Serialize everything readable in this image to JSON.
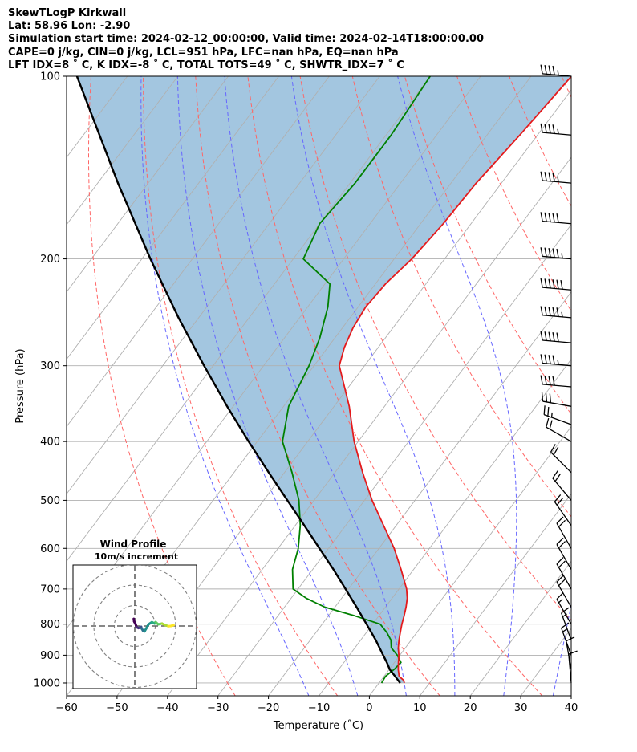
{
  "header": {
    "line1": "SkewTLogP Kirkwall",
    "line2": "Lat: 58.96   Lon: -2.90",
    "line3": "Simulation start time: 2024-02-12_00:00:00, Valid time: 2024-02-14T18:00:00.00",
    "line4": "CAPE=0 j/kg, CIN=0 j/kg, LCL=951 hPa, LFC=nan hPa, EQ=nan hPa",
    "line5": "LFT IDX=8 ˚ C, K IDX=-8 ˚ C, TOTAL TOTS=49 ˚ C, SHWTR_IDX=7 ˚ C"
  },
  "chart_data": {
    "type": "line",
    "subtype": "skew-t log-p",
    "xlabel": "Temperature (˚C)",
    "ylabel": "Pressure (hPa)",
    "xlim": [
      -60,
      40
    ],
    "ylim": [
      1050,
      100
    ],
    "x_ticks": [
      "−60",
      "−50",
      "−40",
      "−30",
      "−20",
      "−10",
      "0",
      "10",
      "20",
      "30",
      "40"
    ],
    "x_tick_values": [
      -60,
      -50,
      -40,
      -30,
      -20,
      -10,
      0,
      10,
      20,
      30,
      40
    ],
    "y_ticks": [
      "100",
      "200",
      "300",
      "400",
      "500",
      "600",
      "700",
      "800",
      "900",
      "1000"
    ],
    "y_tick_values": [
      100,
      200,
      300,
      400,
      500,
      600,
      700,
      800,
      900,
      1000
    ],
    "y_scale": "log",
    "grid": true,
    "colors": {
      "temperature": "#e41a1c",
      "dewpoint": "#008000",
      "parcel": "#000000",
      "shading": "#a3c6e0",
      "dry_adiabats": "#ff6666",
      "moist_adiabats": "#6666ff",
      "isotherms": "#b0b0b0"
    },
    "series": [
      {
        "role": "temperature",
        "p": [
          1000,
          990,
          975,
          950,
          925,
          900,
          875,
          850,
          825,
          800,
          775,
          750,
          725,
          700,
          650,
          600,
          550,
          500,
          450,
          400,
          350,
          300,
          280,
          260,
          240,
          220,
          200,
          175,
          150,
          125,
          100
        ],
        "t": [
          5,
          4.5,
          3,
          1.8,
          0.8,
          -0.2,
          -1.4,
          -2.4,
          -3.3,
          -4.2,
          -5,
          -5.9,
          -7,
          -8.5,
          -12.5,
          -17,
          -22.5,
          -28.5,
          -34.5,
          -40.8,
          -47,
          -55,
          -56.7,
          -57.9,
          -58.5,
          -58,
          -56.5,
          -55.5,
          -55,
          -53.5,
          -52
        ]
      },
      {
        "role": "dewpoint",
        "p": [
          1000,
          975,
          950,
          925,
          900,
          875,
          850,
          825,
          800,
          775,
          750,
          725,
          700,
          650,
          600,
          550,
          500,
          450,
          400,
          350,
          300,
          270,
          240,
          220,
          200,
          175,
          150,
          125,
          100
        ],
        "t": [
          0.5,
          0.3,
          1,
          1.3,
          -0.5,
          -2.8,
          -4,
          -6,
          -8.5,
          -14.8,
          -22,
          -27,
          -31,
          -34,
          -36,
          -39,
          -43,
          -48.5,
          -55,
          -59,
          -61,
          -63,
          -66,
          -69,
          -78,
          -80,
          -79,
          -79,
          -80
        ]
      },
      {
        "role": "parcel",
        "p": [
          1000,
          975,
          951,
          925,
          900,
          850,
          800,
          750,
          700,
          650,
          600,
          550,
          500,
          450,
          400,
          350,
          300,
          250,
          200,
          150,
          100
        ],
        "t": [
          4.2,
          2.2,
          0.2,
          -1.5,
          -3.3,
          -7,
          -11.2,
          -15.7,
          -20.6,
          -25.9,
          -31.8,
          -38.2,
          -45.3,
          -53.1,
          -61.7,
          -71.2,
          -81.8,
          -94,
          -108.3,
          -126,
          -150
        ]
      }
    ],
    "wind_barbs": {
      "p": [
        100,
        125,
        150,
        175,
        200,
        225,
        250,
        275,
        300,
        325,
        350,
        375,
        400,
        450,
        500,
        550,
        600,
        650,
        700,
        750,
        800,
        850,
        900,
        950,
        1000
      ],
      "speed_kt": [
        45,
        45,
        45,
        50,
        55,
        60,
        55,
        50,
        45,
        40,
        30,
        25,
        20,
        20,
        20,
        20,
        20,
        20,
        20,
        20,
        15,
        15,
        15,
        10,
        10
      ],
      "direction_deg": [
        275,
        275,
        275,
        275,
        275,
        275,
        275,
        275,
        275,
        275,
        280,
        290,
        300,
        315,
        320,
        325,
        330,
        330,
        330,
        330,
        330,
        340,
        340,
        350,
        355
      ]
    },
    "inset": {
      "title": "Wind Profile",
      "subtitle": "10m/s increment",
      "type": "hodograph",
      "rings_ms": [
        10,
        20,
        30
      ],
      "u": [
        -0.5,
        -0.3,
        0.4,
        0.9,
        1.8,
        2.6,
        3.1,
        3.4,
        4,
        4.8,
        5.6,
        6.7,
        8.4,
        9.7,
        10.2,
        11.5,
        13.3,
        15,
        16.4,
        17.6,
        19
      ],
      "v": [
        3.5,
        2.2,
        0.9,
        -0.6,
        -1,
        -0.7,
        -0.4,
        -1.3,
        -2.2,
        -2.6,
        -1.2,
        0.8,
        1.9,
        1.2,
        1.9,
        0.8,
        1.2,
        0.4,
        -0.1,
        0,
        0.4
      ]
    }
  }
}
